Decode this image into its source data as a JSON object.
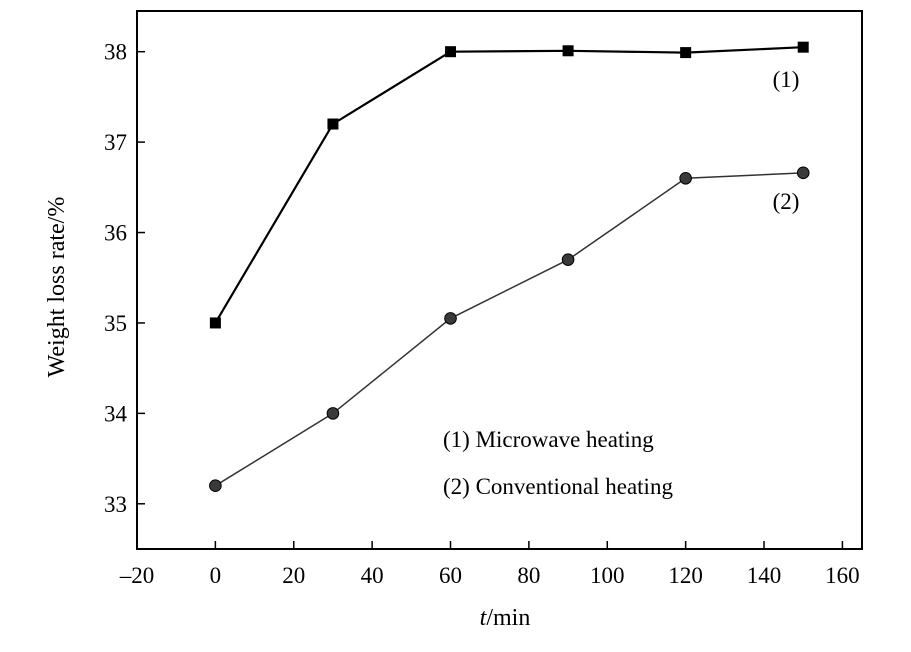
{
  "chart_data": {
    "type": "line",
    "xlabel": {
      "italic": "t",
      "rest": "/min"
    },
    "ylabel": "Weight loss rate/%",
    "xlim": [
      -20,
      165
    ],
    "ylim": [
      32.5,
      38.45
    ],
    "xticks": [
      -20,
      0,
      20,
      40,
      60,
      80,
      100,
      120,
      140,
      160
    ],
    "xtick_labels": [
      "–20",
      "0",
      "20",
      "40",
      "60",
      "80",
      "100",
      "120",
      "140",
      "160"
    ],
    "yticks": [
      33,
      34,
      35,
      36,
      37,
      38
    ],
    "ytick_labels": [
      "33",
      "34",
      "35",
      "36",
      "37",
      "38"
    ],
    "grid": false,
    "legend_position": "lower-right",
    "legend": [
      "(1) Microwave heating",
      "(2) Conventional heating"
    ],
    "series": [
      {
        "tag": "(1)",
        "marker": "square",
        "x": [
          0,
          30,
          60,
          90,
          120,
          150
        ],
        "values": [
          35.0,
          37.2,
          38.0,
          38.01,
          37.99,
          38.05
        ]
      },
      {
        "tag": "(2)",
        "marker": "circle",
        "x": [
          0,
          30,
          60,
          90,
          120,
          150
        ],
        "values": [
          33.2,
          34.0,
          35.05,
          35.7,
          36.6,
          36.66
        ]
      }
    ]
  }
}
